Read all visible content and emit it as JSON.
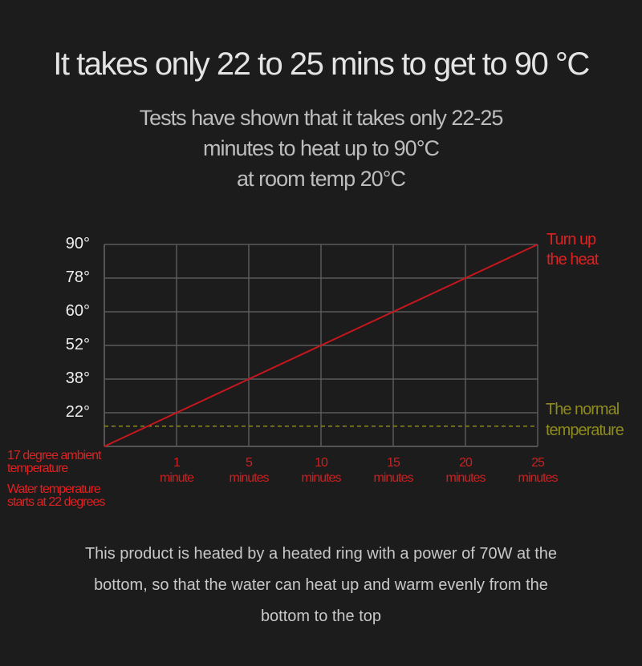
{
  "chart_data": {
    "type": "line",
    "title": "It takes only 22 to 25 mins to get to 90 °C",
    "subtitle": "Tests have shown that it takes only 22-25\nminutes to heat up to 90°C\nat room temp 20°C",
    "categories": [
      null,
      "1\nminute",
      "5\nminutes",
      "10\nminutes",
      "15\nminutes",
      "20\nminutes",
      "25\nminutes"
    ],
    "values": [
      17,
      22,
      38,
      52,
      60,
      78,
      90
    ],
    "color": "#c8161d",
    "ylim": [
      17,
      90
    ],
    "yticks": [
      {
        "value": 22,
        "label": "22°"
      },
      {
        "value": 38,
        "label": "38°"
      },
      {
        "value": 52,
        "label": "52°"
      },
      {
        "value": 60,
        "label": "60°"
      },
      {
        "value": 78,
        "label": "78°"
      },
      {
        "value": 90,
        "label": "90°"
      }
    ],
    "grid": true,
    "reference_line": {
      "value": 20,
      "label": "The normal\ntemperature",
      "color": "#8d8a1e"
    },
    "annotations": [
      "Turn up\nthe heat",
      "17 degree ambient\ntemperature",
      "Water temperature\nstarts at 22 degrees"
    ],
    "note": "This product is heated by a heated ring with a power of 70W at the\nbottom, so that the water can heat up and warm evenly from the\nbottom to the top"
  }
}
